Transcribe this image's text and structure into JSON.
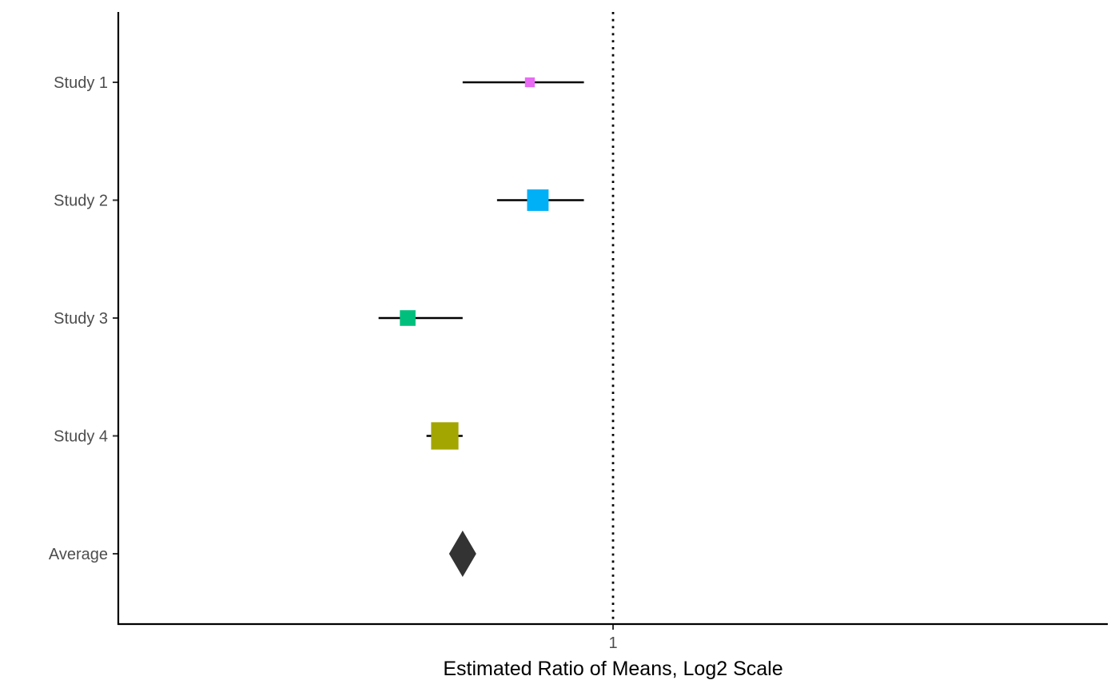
{
  "chart_data": {
    "type": "forest",
    "title": "",
    "xlabel": "Estimated Ratio of Means, Log2 Scale",
    "ylabel": "",
    "x_scale": "log2",
    "xlim": [
      0.5,
      2.0
    ],
    "x_ticks": [
      1
    ],
    "x_tick_labels": [
      "1"
    ],
    "reference_line": {
      "x": 1,
      "style": "dotted"
    },
    "grid": false,
    "legend": "none",
    "rows": [
      {
        "label": "Study 1",
        "estimate": 0.89,
        "lower": 0.81,
        "upper": 0.96,
        "weight": 0.5,
        "color": "#E76BF3"
      },
      {
        "label": "Study 2",
        "estimate": 0.9,
        "lower": 0.85,
        "upper": 0.96,
        "weight": 1.5,
        "color": "#00B0F6"
      },
      {
        "label": "Study 3",
        "estimate": 0.75,
        "lower": 0.72,
        "upper": 0.81,
        "weight": 1.0,
        "color": "#00BF7D"
      },
      {
        "label": "Study 4",
        "estimate": 0.79,
        "lower": 0.77,
        "upper": 0.81,
        "weight": 2.0,
        "color": "#A3A500"
      },
      {
        "label": "Average",
        "estimate": 0.81,
        "lower": 0.8,
        "upper": 0.82,
        "weight": 1.0,
        "color": "#F8766D",
        "summary": true,
        "summary_color": "#333333"
      }
    ]
  }
}
